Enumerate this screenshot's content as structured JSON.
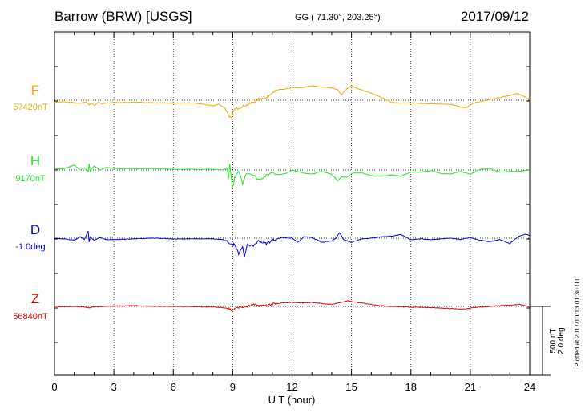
{
  "header": {
    "station": "Barrow (BRW)  [USGS]",
    "coords": "GG ( 71.30°, 203.25°)",
    "date": "2017/09/12"
  },
  "plotted_note": "Plotted at 2017/10/13 01:30 UT",
  "scale": {
    "nt": "500 nT",
    "deg": "2.0 deg"
  },
  "chart_data": {
    "type": "line",
    "title": "Barrow (BRW)  [USGS]",
    "xlabel": "U T (hour)",
    "x_ticks": [
      0,
      3,
      6,
      9,
      12,
      15,
      18,
      21,
      24
    ],
    "xlim": [
      0,
      24
    ],
    "grid": true,
    "series": [
      {
        "name": "F",
        "baseline": "57420nT",
        "color": "#f5a800",
        "points": [
          [
            0,
            -15
          ],
          [
            0.5,
            -12
          ],
          [
            1,
            -18
          ],
          [
            1.3,
            -25
          ],
          [
            1.6,
            -10
          ],
          [
            1.75,
            -35
          ],
          [
            1.9,
            -20
          ],
          [
            2,
            -40
          ],
          [
            2.2,
            -15
          ],
          [
            2.4,
            -25
          ],
          [
            2.6,
            -20
          ],
          [
            3,
            -18
          ],
          [
            4,
            -15
          ],
          [
            5,
            -18
          ],
          [
            6,
            -22
          ],
          [
            7,
            -20
          ],
          [
            7.5,
            -30
          ],
          [
            8,
            -40
          ],
          [
            8.3,
            -30
          ],
          [
            8.6,
            -55
          ],
          [
            8.8,
            -110
          ],
          [
            8.95,
            -135
          ],
          [
            9.05,
            -70
          ],
          [
            9.2,
            -60
          ],
          [
            9.5,
            -45
          ],
          [
            9.8,
            -30
          ],
          [
            10.1,
            -10
          ],
          [
            10.4,
            15
          ],
          [
            10.7,
            15
          ],
          [
            11,
            60
          ],
          [
            11.3,
            75
          ],
          [
            11.6,
            80
          ],
          [
            12,
            90
          ],
          [
            12.5,
            90
          ],
          [
            13,
            105
          ],
          [
            13.5,
            95
          ],
          [
            14,
            90
          ],
          [
            14.3,
            75
          ],
          [
            14.5,
            40
          ],
          [
            14.7,
            75
          ],
          [
            15,
            105
          ],
          [
            15.2,
            90
          ],
          [
            15.5,
            75
          ],
          [
            16,
            50
          ],
          [
            16.5,
            20
          ],
          [
            17,
            -15
          ],
          [
            17.5,
            -20
          ],
          [
            18,
            -20
          ],
          [
            19,
            -25
          ],
          [
            20,
            -30
          ],
          [
            20.5,
            -50
          ],
          [
            20.8,
            -55
          ],
          [
            21.1,
            -25
          ],
          [
            21.5,
            -10
          ],
          [
            22,
            5
          ],
          [
            22.5,
            20
          ],
          [
            23,
            35
          ],
          [
            23.4,
            50
          ],
          [
            23.8,
            20
          ],
          [
            24,
            5
          ]
        ]
      },
      {
        "name": "H",
        "baseline": "9170nT",
        "color": "#22e622",
        "points": [
          [
            0,
            5
          ],
          [
            0.5,
            10
          ],
          [
            1,
            35
          ],
          [
            1.3,
            0
          ],
          [
            1.5,
            15
          ],
          [
            1.7,
            -10
          ],
          [
            1.75,
            45
          ],
          [
            1.8,
            -10
          ],
          [
            2,
            30
          ],
          [
            2.3,
            0
          ],
          [
            2.6,
            20
          ],
          [
            3,
            10
          ],
          [
            4,
            10
          ],
          [
            5,
            10
          ],
          [
            6,
            5
          ],
          [
            7,
            5
          ],
          [
            8,
            5
          ],
          [
            8.5,
            0
          ],
          [
            8.7,
            10
          ],
          [
            8.8,
            -60
          ],
          [
            8.85,
            40
          ],
          [
            9,
            -130
          ],
          [
            9.1,
            -60
          ],
          [
            9.3,
            -10
          ],
          [
            9.5,
            -100
          ],
          [
            9.7,
            -20
          ],
          [
            10,
            -30
          ],
          [
            10.3,
            -70
          ],
          [
            10.6,
            -50
          ],
          [
            11,
            -15
          ],
          [
            11.3,
            -35
          ],
          [
            11.7,
            -25
          ],
          [
            12,
            0
          ],
          [
            12.5,
            -20
          ],
          [
            13,
            -30
          ],
          [
            13.5,
            -10
          ],
          [
            14,
            -30
          ],
          [
            14.3,
            -80
          ],
          [
            14.5,
            -50
          ],
          [
            14.8,
            -50
          ],
          [
            15,
            -25
          ],
          [
            15.5,
            -20
          ],
          [
            16,
            -40
          ],
          [
            16.5,
            -45
          ],
          [
            17,
            -35
          ],
          [
            17.5,
            -45
          ],
          [
            18,
            -15
          ],
          [
            18.5,
            -15
          ],
          [
            19,
            -5
          ],
          [
            19.5,
            -25
          ],
          [
            20,
            -30
          ],
          [
            20.5,
            -10
          ],
          [
            21,
            -30
          ],
          [
            21.5,
            5
          ],
          [
            22,
            10
          ],
          [
            22.5,
            -15
          ],
          [
            23,
            -10
          ],
          [
            23.5,
            -10
          ],
          [
            24,
            0
          ]
        ]
      },
      {
        "name": "D",
        "baseline": "-1.0deg",
        "color": "#0000dd",
        "points": [
          [
            0,
            0
          ],
          [
            0.5,
            -5
          ],
          [
            1,
            -15
          ],
          [
            1.3,
            10
          ],
          [
            1.5,
            -10
          ],
          [
            1.7,
            50
          ],
          [
            1.75,
            -30
          ],
          [
            1.8,
            10
          ],
          [
            2,
            -15
          ],
          [
            2.3,
            5
          ],
          [
            2.6,
            -10
          ],
          [
            3,
            -10
          ],
          [
            4,
            -5
          ],
          [
            5,
            0
          ],
          [
            6,
            -5
          ],
          [
            7,
            -5
          ],
          [
            8,
            -5
          ],
          [
            8.5,
            -10
          ],
          [
            8.8,
            -30
          ],
          [
            9,
            -50
          ],
          [
            9.1,
            -40
          ],
          [
            9.3,
            -110
          ],
          [
            9.5,
            -60
          ],
          [
            9.6,
            -140
          ],
          [
            9.75,
            -40
          ],
          [
            10,
            -60
          ],
          [
            10.3,
            -20
          ],
          [
            10.7,
            -40
          ],
          [
            11,
            -15
          ],
          [
            11.5,
            5
          ],
          [
            12,
            0
          ],
          [
            12.3,
            -30
          ],
          [
            12.6,
            10
          ],
          [
            13,
            5
          ],
          [
            13.5,
            -30
          ],
          [
            14,
            -20
          ],
          [
            14.2,
            0
          ],
          [
            14.4,
            40
          ],
          [
            14.6,
            -10
          ],
          [
            14.8,
            -20
          ],
          [
            15,
            -30
          ],
          [
            15.5,
            -5
          ],
          [
            16,
            0
          ],
          [
            16.5,
            10
          ],
          [
            17,
            15
          ],
          [
            17.5,
            25
          ],
          [
            18,
            -10
          ],
          [
            18.5,
            -5
          ],
          [
            19,
            -10
          ],
          [
            19.5,
            -5
          ],
          [
            20,
            0
          ],
          [
            20.5,
            -10
          ],
          [
            21,
            5
          ],
          [
            21.5,
            -15
          ],
          [
            22,
            -25
          ],
          [
            22.5,
            -10
          ],
          [
            23,
            -40
          ],
          [
            23.4,
            10
          ],
          [
            23.8,
            30
          ],
          [
            24,
            20
          ]
        ]
      },
      {
        "name": "Z",
        "baseline": "56840nT",
        "color": "#e00000",
        "points": [
          [
            0,
            0
          ],
          [
            0.5,
            -3
          ],
          [
            1,
            0
          ],
          [
            1.5,
            -5
          ],
          [
            1.75,
            -12
          ],
          [
            1.9,
            -5
          ],
          [
            2.3,
            -2
          ],
          [
            2.6,
            0
          ],
          [
            3,
            3
          ],
          [
            4,
            5
          ],
          [
            5,
            0
          ],
          [
            6,
            0
          ],
          [
            7,
            -2
          ],
          [
            8,
            -5
          ],
          [
            8.5,
            -8
          ],
          [
            8.8,
            -15
          ],
          [
            8.95,
            -30
          ],
          [
            9.1,
            -20
          ],
          [
            9.3,
            -5
          ],
          [
            9.6,
            -5
          ],
          [
            10,
            10
          ],
          [
            10.5,
            5
          ],
          [
            11,
            15
          ],
          [
            11.5,
            25
          ],
          [
            12,
            30
          ],
          [
            12.5,
            25
          ],
          [
            13,
            30
          ],
          [
            13.5,
            20
          ],
          [
            14,
            15
          ],
          [
            14.5,
            30
          ],
          [
            14.8,
            40
          ],
          [
            15,
            35
          ],
          [
            15.5,
            25
          ],
          [
            16,
            15
          ],
          [
            16.5,
            5
          ],
          [
            17,
            0
          ],
          [
            17.5,
            -3
          ],
          [
            18,
            -5
          ],
          [
            19,
            -8
          ],
          [
            19.5,
            -12
          ],
          [
            20,
            -15
          ],
          [
            20.5,
            -20
          ],
          [
            20.8,
            -18
          ],
          [
            21.2,
            -8
          ],
          [
            21.5,
            -5
          ],
          [
            22,
            0
          ],
          [
            22.5,
            5
          ],
          [
            23,
            10
          ],
          [
            23.5,
            15
          ],
          [
            23.8,
            5
          ],
          [
            24,
            -5
          ]
        ]
      }
    ]
  }
}
